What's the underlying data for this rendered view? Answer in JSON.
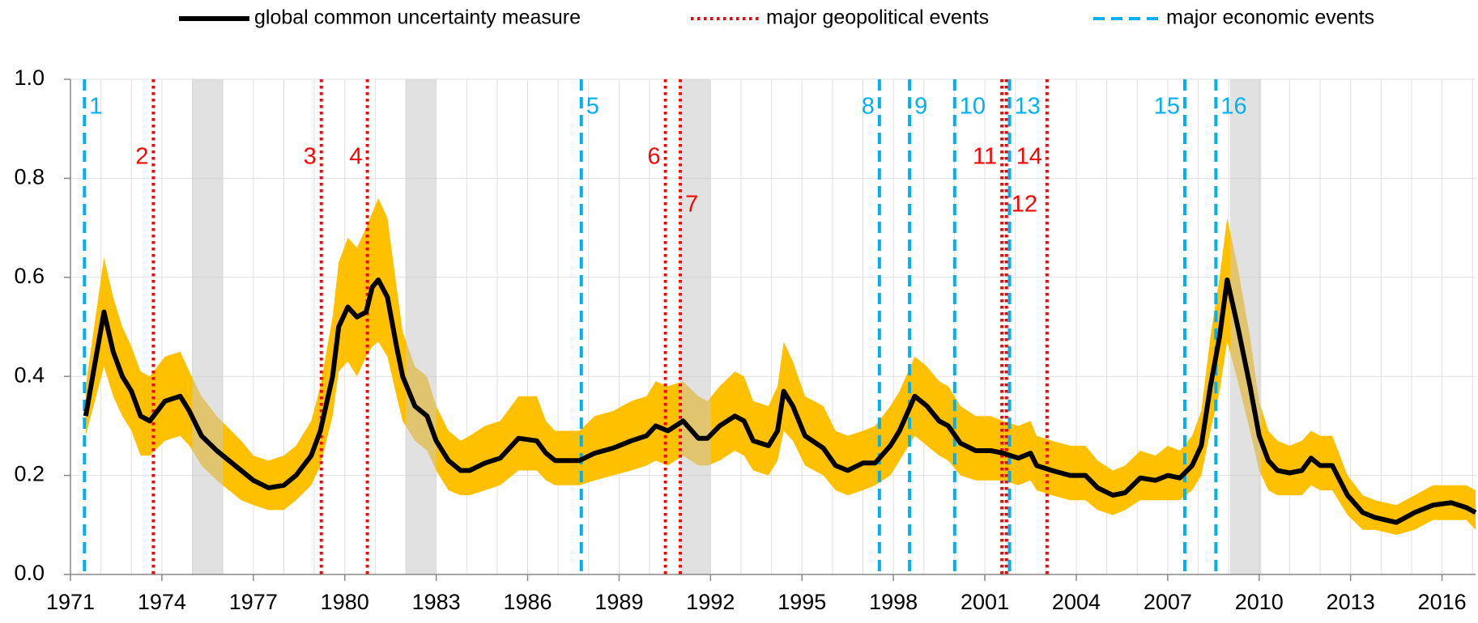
{
  "chart_data": {
    "type": "line",
    "x": [
      1971.5,
      1972.1,
      1972.4,
      1972.7,
      1973.0,
      1973.3,
      1973.6,
      1974.1,
      1974.6,
      1974.9,
      1975.3,
      1975.8,
      1976.6,
      1977.0,
      1977.5,
      1978.0,
      1978.4,
      1978.9,
      1979.2,
      1979.6,
      1979.8,
      1980.1,
      1980.4,
      1980.7,
      1980.9,
      1981.1,
      1981.4,
      1981.7,
      1981.9,
      1982.3,
      1982.7,
      1983.0,
      1983.4,
      1983.8,
      1984.1,
      1984.6,
      1985.1,
      1985.7,
      1986.3,
      1986.6,
      1986.9,
      1987.7,
      1988.2,
      1988.8,
      1989.4,
      1989.9,
      1990.2,
      1990.6,
      1991.1,
      1991.6,
      1991.9,
      1992.3,
      1992.8,
      1993.1,
      1993.4,
      1993.9,
      1994.2,
      1994.4,
      1994.7,
      1995.1,
      1995.7,
      1996.1,
      1996.5,
      1997.0,
      1997.4,
      1997.9,
      1998.2,
      1998.7,
      1999.1,
      1999.5,
      1999.8,
      2000.2,
      2000.7,
      2001.2,
      2001.6,
      2002.1,
      2002.5,
      2002.7,
      2003.2,
      2003.8,
      2004.3,
      2004.7,
      2005.2,
      2005.6,
      2006.1,
      2006.6,
      2007.0,
      2007.4,
      2007.8,
      2008.1,
      2008.4,
      2008.7,
      2008.95,
      2009.3,
      2009.7,
      2010.0,
      2010.3,
      2010.6,
      2011.0,
      2011.4,
      2011.7,
      2012.0,
      2012.4,
      2012.9,
      2013.4,
      2013.8,
      2014.5,
      2015.1,
      2015.7,
      2016.3,
      2016.8,
      2017.1
    ],
    "series": [
      {
        "name": "global common uncertainty measure",
        "color": "#000000",
        "values": [
          0.32,
          0.53,
          0.45,
          0.4,
          0.37,
          0.32,
          0.31,
          0.35,
          0.36,
          0.33,
          0.28,
          0.25,
          0.21,
          0.19,
          0.175,
          0.18,
          0.2,
          0.24,
          0.29,
          0.4,
          0.5,
          0.54,
          0.52,
          0.53,
          0.58,
          0.595,
          0.56,
          0.46,
          0.4,
          0.34,
          0.32,
          0.27,
          0.23,
          0.21,
          0.21,
          0.225,
          0.235,
          0.275,
          0.27,
          0.245,
          0.23,
          0.23,
          0.245,
          0.255,
          0.27,
          0.28,
          0.3,
          0.29,
          0.31,
          0.275,
          0.275,
          0.3,
          0.32,
          0.31,
          0.27,
          0.26,
          0.29,
          0.37,
          0.34,
          0.28,
          0.255,
          0.22,
          0.21,
          0.225,
          0.225,
          0.26,
          0.29,
          0.36,
          0.34,
          0.31,
          0.3,
          0.265,
          0.25,
          0.25,
          0.245,
          0.235,
          0.245,
          0.22,
          0.21,
          0.2,
          0.2,
          0.175,
          0.16,
          0.165,
          0.195,
          0.19,
          0.2,
          0.195,
          0.22,
          0.26,
          0.38,
          0.48,
          0.595,
          0.5,
          0.38,
          0.28,
          0.23,
          0.21,
          0.205,
          0.21,
          0.235,
          0.22,
          0.22,
          0.16,
          0.125,
          0.115,
          0.105,
          0.125,
          0.14,
          0.145,
          0.135,
          0.125
        ]
      }
    ],
    "band": {
      "color": "#ffc000",
      "upper": [
        0.38,
        0.64,
        0.56,
        0.5,
        0.46,
        0.41,
        0.4,
        0.44,
        0.45,
        0.41,
        0.36,
        0.32,
        0.27,
        0.24,
        0.23,
        0.24,
        0.26,
        0.31,
        0.38,
        0.52,
        0.63,
        0.68,
        0.66,
        0.7,
        0.73,
        0.76,
        0.72,
        0.58,
        0.49,
        0.42,
        0.4,
        0.34,
        0.29,
        0.27,
        0.28,
        0.3,
        0.31,
        0.36,
        0.36,
        0.31,
        0.29,
        0.29,
        0.32,
        0.33,
        0.35,
        0.36,
        0.39,
        0.38,
        0.39,
        0.36,
        0.35,
        0.38,
        0.41,
        0.4,
        0.35,
        0.34,
        0.38,
        0.47,
        0.43,
        0.36,
        0.34,
        0.29,
        0.28,
        0.29,
        0.3,
        0.34,
        0.37,
        0.44,
        0.42,
        0.39,
        0.38,
        0.34,
        0.32,
        0.32,
        0.31,
        0.3,
        0.31,
        0.28,
        0.27,
        0.26,
        0.26,
        0.23,
        0.21,
        0.22,
        0.25,
        0.24,
        0.26,
        0.25,
        0.28,
        0.33,
        0.48,
        0.6,
        0.72,
        0.62,
        0.48,
        0.35,
        0.29,
        0.27,
        0.26,
        0.27,
        0.29,
        0.28,
        0.28,
        0.2,
        0.16,
        0.15,
        0.14,
        0.16,
        0.18,
        0.18,
        0.18,
        0.17
      ],
      "lower": [
        0.28,
        0.42,
        0.36,
        0.32,
        0.29,
        0.24,
        0.24,
        0.27,
        0.28,
        0.26,
        0.22,
        0.19,
        0.15,
        0.14,
        0.13,
        0.13,
        0.15,
        0.18,
        0.22,
        0.32,
        0.41,
        0.43,
        0.4,
        0.44,
        0.46,
        0.47,
        0.44,
        0.36,
        0.31,
        0.27,
        0.25,
        0.21,
        0.17,
        0.16,
        0.16,
        0.17,
        0.18,
        0.21,
        0.21,
        0.19,
        0.18,
        0.18,
        0.19,
        0.2,
        0.21,
        0.22,
        0.23,
        0.22,
        0.24,
        0.22,
        0.22,
        0.23,
        0.25,
        0.24,
        0.21,
        0.2,
        0.23,
        0.29,
        0.27,
        0.22,
        0.2,
        0.17,
        0.16,
        0.17,
        0.18,
        0.2,
        0.23,
        0.28,
        0.26,
        0.24,
        0.23,
        0.2,
        0.19,
        0.19,
        0.19,
        0.18,
        0.19,
        0.17,
        0.16,
        0.15,
        0.15,
        0.13,
        0.12,
        0.13,
        0.15,
        0.15,
        0.15,
        0.15,
        0.17,
        0.2,
        0.29,
        0.37,
        0.47,
        0.39,
        0.29,
        0.21,
        0.17,
        0.16,
        0.16,
        0.16,
        0.18,
        0.17,
        0.17,
        0.12,
        0.09,
        0.09,
        0.08,
        0.09,
        0.11,
        0.11,
        0.11,
        0.09
      ]
    },
    "shaded_periods": {
      "color": "#c8c8c8",
      "ranges": [
        [
          1975.0,
          1976.0
        ],
        [
          1982.0,
          1983.0
        ],
        [
          1991.0,
          1992.0
        ],
        [
          2009.05,
          2010.07
        ]
      ]
    },
    "event_types": [
      {
        "name": "major geopolitical events",
        "color": "#ff0000",
        "style": "dotted"
      },
      {
        "name": "major economic events",
        "color": "#00b0f0",
        "style": "dashed"
      }
    ],
    "events": [
      {
        "label": "1",
        "x": 1971.46,
        "type": 1
      },
      {
        "label": "2",
        "x": 1973.72,
        "type": 0
      },
      {
        "label": "3",
        "x": 1979.23,
        "type": 0
      },
      {
        "label": "4",
        "x": 1980.74,
        "type": 0
      },
      {
        "label": "5",
        "x": 1987.76,
        "type": 1
      },
      {
        "label": "6",
        "x": 1990.52,
        "type": 0
      },
      {
        "label": "7",
        "x": 1991.01,
        "type": 0
      },
      {
        "label": "8",
        "x": 1997.54,
        "type": 1
      },
      {
        "label": "9",
        "x": 1998.53,
        "type": 1
      },
      {
        "label": "10",
        "x": 2000.01,
        "type": 1
      },
      {
        "label": "11",
        "x": 2001.56,
        "type": 0
      },
      {
        "label": "12",
        "x": 2001.71,
        "type": 0
      },
      {
        "label": "13",
        "x": 2001.81,
        "type": 1
      },
      {
        "label": "14",
        "x": 2003.04,
        "type": 0
      },
      {
        "label": "15",
        "x": 2007.56,
        "type": 1
      },
      {
        "label": "16",
        "x": 2008.58,
        "type": 1
      }
    ],
    "xlim": [
      1971,
      2017.1
    ],
    "xticks": [
      1971,
      1974,
      1977,
      1980,
      1983,
      1986,
      1989,
      1992,
      1995,
      1998,
      2001,
      2004,
      2007,
      2010,
      2013,
      2016
    ],
    "x_gridlines": [
      1972,
      1973,
      1974,
      1975,
      1976,
      1977,
      1978,
      1979,
      1980,
      1981,
      1982,
      1983,
      1984,
      1985,
      1986,
      1987,
      1988,
      1989,
      1990,
      1991,
      1992,
      1993,
      1994,
      1995,
      1996,
      1997,
      1998,
      1999,
      2000,
      2001,
      2002,
      2003,
      2004,
      2005,
      2006,
      2007,
      2008,
      2009,
      2010,
      2011,
      2012,
      2013,
      2014,
      2015,
      2016,
      2017
    ],
    "ylim": [
      0,
      1
    ],
    "yticks": [
      {
        "value": 0,
        "label": "0.0"
      },
      {
        "value": 0.2,
        "label": "0.2"
      },
      {
        "value": 0.4,
        "label": "0.4"
      },
      {
        "value": 0.6,
        "label": "0.6"
      },
      {
        "value": 0.8,
        "label": "0.8"
      },
      {
        "value": 1,
        "label": "1.0"
      }
    ],
    "grid": true
  }
}
